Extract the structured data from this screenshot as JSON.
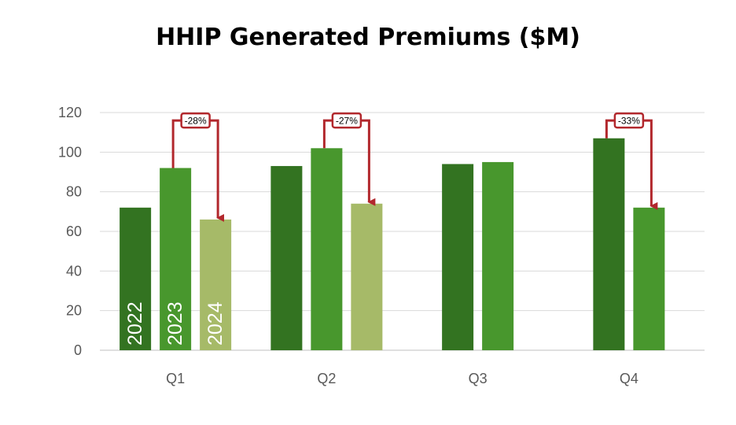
{
  "chart_data": {
    "type": "bar",
    "title": "HHIP Generated Premiums ($M)",
    "xlabel": "",
    "ylabel": "",
    "categories": [
      "Q1",
      "Q2",
      "Q3",
      "Q4"
    ],
    "ylim": [
      0,
      120
    ],
    "yticks": [
      0,
      20,
      40,
      60,
      80,
      100,
      120
    ],
    "grid": true,
    "series": [
      {
        "name": "2022",
        "color": "#337321",
        "values": [
          72,
          93,
          94,
          107
        ]
      },
      {
        "name": "2023",
        "color": "#48972D",
        "values": [
          92,
          102,
          95,
          72
        ]
      },
      {
        "name": "2024",
        "color": "#A6BA68",
        "values": [
          66,
          74,
          null,
          null
        ]
      }
    ],
    "series_labels_shown_in": "Q1",
    "annotations": [
      {
        "category": "Q1",
        "from": "2023",
        "to": "2024",
        "text": "-28%",
        "color": "#B2282D"
      },
      {
        "category": "Q2",
        "from": "2023",
        "to": "2024",
        "text": "-27%",
        "color": "#B2282D"
      },
      {
        "category": "Q4",
        "from": "2022",
        "to": "2023",
        "text": "-33%",
        "color": "#B2282D"
      }
    ]
  }
}
